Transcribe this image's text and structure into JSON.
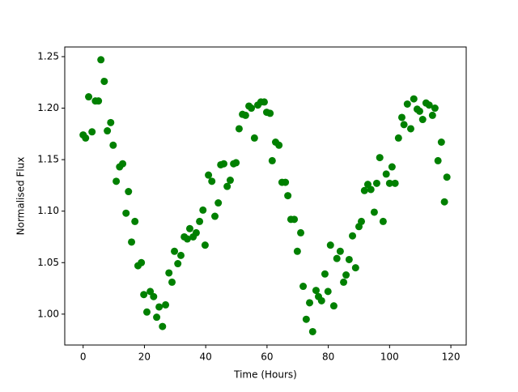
{
  "chart_data": {
    "type": "scatter",
    "xlabel": "Time (Hours)",
    "ylabel": "Normalised Flux",
    "color": "#008000",
    "x": [
      0,
      0.8,
      1.8,
      2.9,
      4.0,
      5.0,
      5.8,
      6.9,
      7.9,
      9.0,
      9.8,
      10.8,
      11.9,
      12.9,
      14.0,
      14.8,
      15.8,
      16.9,
      17.9,
      19.0,
      19.8,
      20.8,
      21.9,
      23.0,
      24.0,
      24.8,
      25.9,
      26.9,
      28.0,
      29.0,
      29.8,
      30.9,
      31.9,
      33.0,
      34.0,
      34.8,
      35.9,
      36.9,
      38.0,
      39.1,
      39.8,
      40.9,
      42.0,
      43.0,
      44.1,
      44.9,
      45.9,
      47.0,
      48.0,
      49.1,
      49.9,
      50.9,
      52.0,
      53.0,
      54.1,
      54.9,
      55.9,
      57.0,
      58.0,
      59.1,
      59.9,
      61.0,
      61.7,
      62.8,
      63.9,
      64.9,
      66.0,
      66.8,
      67.8,
      68.9,
      69.9,
      71.0,
      71.8,
      72.8,
      73.9,
      74.9,
      76.0,
      76.8,
      77.8,
      78.9,
      79.9,
      80.7,
      81.8,
      82.8,
      83.9,
      85.0,
      85.8,
      86.8,
      87.9,
      88.9,
      90.0,
      90.8,
      91.8,
      92.9,
      93.9,
      95.0,
      95.8,
      96.8,
      97.9,
      98.9,
      100.0,
      100.8,
      101.8,
      102.9,
      104.0,
      104.7,
      105.8,
      106.9,
      107.9,
      109.0,
      109.8,
      110.8,
      111.9,
      112.9,
      114.0,
      114.8,
      115.8,
      116.9,
      117.9,
      118.7
    ],
    "values": [
      1.174,
      1.171,
      1.211,
      1.177,
      1.207,
      1.207,
      1.247,
      1.226,
      1.178,
      1.186,
      1.164,
      1.129,
      1.143,
      1.146,
      1.098,
      1.119,
      1.07,
      1.09,
      1.047,
      1.05,
      1.019,
      1.002,
      1.022,
      1.017,
      0.997,
      1.007,
      0.988,
      1.009,
      1.04,
      1.031,
      1.061,
      1.049,
      1.057,
      1.075,
      1.073,
      1.083,
      1.075,
      1.079,
      1.09,
      1.101,
      1.067,
      1.135,
      1.129,
      1.095,
      1.108,
      1.145,
      1.146,
      1.124,
      1.13,
      1.146,
      1.147,
      1.18,
      1.194,
      1.193,
      1.202,
      1.2,
      1.171,
      1.203,
      1.206,
      1.206,
      1.196,
      1.195,
      1.149,
      1.167,
      1.164,
      1.128,
      1.128,
      1.115,
      1.092,
      1.092,
      1.061,
      1.079,
      1.027,
      0.995,
      1.011,
      0.983,
      1.023,
      1.017,
      1.013,
      1.039,
      1.022,
      1.067,
      1.008,
      1.054,
      1.061,
      1.031,
      1.038,
      1.053,
      1.076,
      1.045,
      1.085,
      1.09,
      1.12,
      1.126,
      1.121,
      1.099,
      1.127,
      1.152,
      1.09,
      1.136,
      1.127,
      1.143,
      1.127,
      1.171,
      1.191,
      1.184,
      1.204,
      1.18,
      1.209,
      1.199,
      1.197,
      1.189,
      1.205,
      1.203,
      1.193,
      1.2,
      1.149,
      1.167,
      1.109,
      1.133
    ],
    "xlim": [
      -6,
      125
    ],
    "ylim": [
      0.97,
      1.2594
    ],
    "xticks": [
      0,
      20,
      40,
      60,
      80,
      100,
      120
    ],
    "yticks": [
      {
        "value": 1.0,
        "label": "1.00"
      },
      {
        "value": 1.05,
        "label": "1.05"
      },
      {
        "value": 1.1,
        "label": "1.10"
      },
      {
        "value": 1.15,
        "label": "1.15"
      },
      {
        "value": 1.2,
        "label": "1.20"
      },
      {
        "value": 1.25,
        "label": "1.25"
      }
    ]
  }
}
